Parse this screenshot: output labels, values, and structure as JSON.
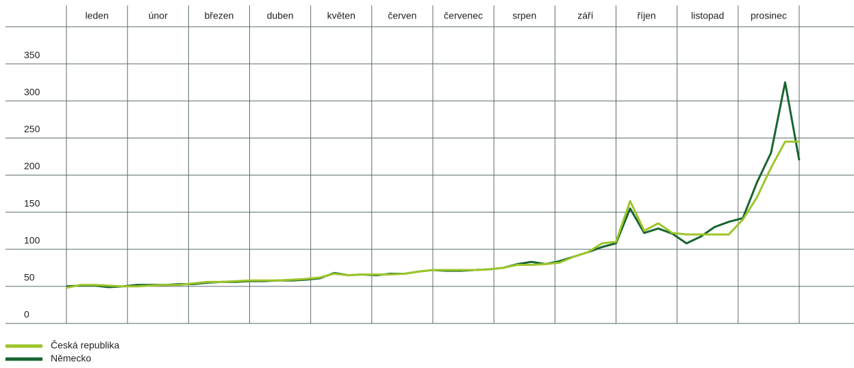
{
  "chart_data": {
    "type": "line",
    "x_labels": [
      "leden",
      "únor",
      "březen",
      "duben",
      "květen",
      "červen",
      "červenec",
      "srpen",
      "září",
      "říjen",
      "listopad",
      "prosinec"
    ],
    "series": [
      {
        "name": "Česká republika",
        "color": "#9dc52a",
        "values": [
          48,
          52,
          52,
          51,
          50,
          50,
          51,
          52,
          52,
          54,
          56,
          56,
          57,
          58,
          58,
          58,
          59,
          60,
          62,
          67,
          65,
          66,
          66,
          66,
          67,
          70,
          72,
          72,
          72,
          72,
          73,
          75,
          79,
          79,
          80,
          82,
          90,
          96,
          108,
          110,
          165,
          125,
          135,
          122,
          120,
          120,
          120,
          120,
          140,
          170,
          210,
          245,
          245
        ]
      },
      {
        "name": "Německo",
        "color": "#17652f",
        "values": [
          50,
          51,
          51,
          49,
          50,
          52,
          52,
          52,
          53,
          53,
          55,
          56,
          56,
          57,
          57,
          58,
          58,
          59,
          61,
          68,
          65,
          66,
          65,
          67,
          67,
          70,
          72,
          71,
          71,
          72,
          73,
          75,
          80,
          83,
          80,
          84,
          90,
          96,
          103,
          108,
          155,
          122,
          128,
          121,
          108,
          117,
          130,
          137,
          142,
          190,
          230,
          325,
          220
        ]
      }
    ],
    "ylim": [
      0,
      400
    ],
    "yticks": [
      0,
      50,
      100,
      150,
      200,
      250,
      300,
      350
    ],
    "grid": true
  }
}
